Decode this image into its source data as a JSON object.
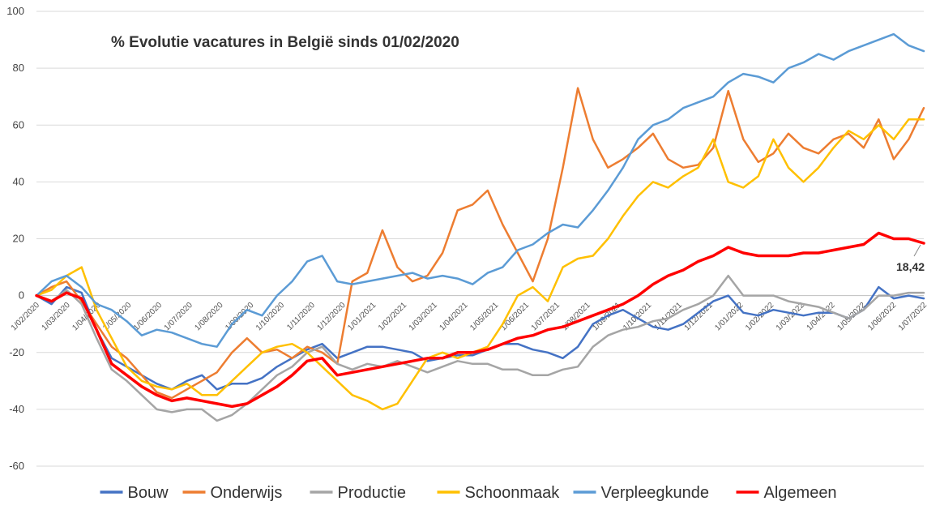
{
  "chart_data": {
    "type": "line",
    "title": "% Evolutie vacatures in België sinds 01/02/2020",
    "xlabel": "",
    "ylabel": "",
    "ylim": [
      -60,
      100
    ],
    "yticks": [
      -60,
      -40,
      -20,
      0,
      20,
      40,
      60,
      80,
      100
    ],
    "grid": true,
    "legend_position": "bottom",
    "x_tick_labels": [
      "1/02/2020",
      "1/03/2020",
      "1/04/2020",
      "1/05/2020",
      "1/06/2020",
      "1/07/2020",
      "1/08/2020",
      "1/09/2020",
      "1/10/2020",
      "1/11/2020",
      "1/12/2020",
      "1/01/2021",
      "1/02/2021",
      "1/03/2021",
      "1/04/2021",
      "1/05/2021",
      "1/06/2021",
      "1/07/2021",
      "1/08/2021",
      "1/09/2021",
      "1/10/2021",
      "1/11/2021",
      "1/12/2021",
      "1/01/2022",
      "1/02/2022",
      "1/03/2022",
      "1/04/2022",
      "1/05/2022",
      "1/06/2022",
      "1/07/2022"
    ],
    "x": [
      "2020-02",
      "2020-02-15",
      "2020-03",
      "2020-03-15",
      "2020-04",
      "2020-04-15",
      "2020-05",
      "2020-05-15",
      "2020-06",
      "2020-06-15",
      "2020-07",
      "2020-07-15",
      "2020-08",
      "2020-08-15",
      "2020-09",
      "2020-09-15",
      "2020-10",
      "2020-10-15",
      "2020-11",
      "2020-11-15",
      "2020-12",
      "2020-12-15",
      "2021-01",
      "2021-01-15",
      "2021-02",
      "2021-02-15",
      "2021-03",
      "2021-03-15",
      "2021-04",
      "2021-04-15",
      "2021-05",
      "2021-05-15",
      "2021-06",
      "2021-06-15",
      "2021-07",
      "2021-07-15",
      "2021-08",
      "2021-08-15",
      "2021-09",
      "2021-09-15",
      "2021-10",
      "2021-10-15",
      "2021-11",
      "2021-11-15",
      "2021-12",
      "2021-12-15",
      "2022-01",
      "2022-01-15",
      "2022-02",
      "2022-02-15",
      "2022-03",
      "2022-03-15",
      "2022-04",
      "2022-04-15",
      "2022-05",
      "2022-05-15",
      "2022-06",
      "2022-06-15",
      "2022-07",
      "2022-07-15"
    ],
    "series": [
      {
        "name": "Bouw",
        "color": "#4472c4",
        "values": [
          0,
          -3,
          3,
          1,
          -12,
          -22,
          -25,
          -28,
          -31,
          -33,
          -30,
          -28,
          -33,
          -31,
          -31,
          -29,
          -25,
          -22,
          -19,
          -17,
          -22,
          -20,
          -18,
          -18,
          -19,
          -20,
          -23,
          -22,
          -21,
          -21,
          -19,
          -17,
          -17,
          -19,
          -20,
          -22,
          -18,
          -10,
          -7,
          -5,
          -8,
          -11,
          -12,
          -10,
          -6,
          -2,
          0,
          -6,
          -7,
          -5,
          -6,
          -7,
          -6,
          -6,
          -8,
          -5,
          3,
          -1,
          0,
          -1
        ]
      },
      {
        "name": "Onderwijs",
        "color": "#ed7d31",
        "values": [
          0,
          3,
          5,
          -2,
          -10,
          -18,
          -22,
          -28,
          -34,
          -36,
          -33,
          -30,
          -27,
          -20,
          -15,
          -20,
          -19,
          -22,
          -18,
          -20,
          -24,
          5,
          8,
          23,
          10,
          5,
          7,
          15,
          30,
          32,
          37,
          25,
          15,
          5,
          20,
          45,
          73,
          55,
          45,
          48,
          52,
          57,
          48,
          45,
          46,
          52,
          72,
          55,
          47,
          50,
          57,
          52,
          50,
          55,
          57,
          52,
          62,
          48,
          55,
          66
        ]
      },
      {
        "name": "Productie",
        "color": "#a5a5a5",
        "values": [
          0,
          -2,
          2,
          -3,
          -15,
          -26,
          -30,
          -35,
          -40,
          -41,
          -40,
          -40,
          -44,
          -42,
          -38,
          -33,
          -28,
          -25,
          -20,
          -18,
          -24,
          -26,
          -24,
          -25,
          -23,
          -25,
          -27,
          -25,
          -23,
          -24,
          -24,
          -26,
          -26,
          -28,
          -28,
          -26,
          -25,
          -18,
          -14,
          -12,
          -11,
          -9,
          -8,
          -5,
          -3,
          0,
          7,
          0,
          0,
          0,
          -2,
          -3,
          -4,
          -6,
          -8,
          -5,
          0,
          0,
          1,
          1
        ]
      },
      {
        "name": "Schoonmaak",
        "color": "#ffc000",
        "values": [
          0,
          2,
          7,
          10,
          -5,
          -15,
          -25,
          -30,
          -32,
          -33,
          -31,
          -35,
          -35,
          -30,
          -25,
          -20,
          -18,
          -17,
          -20,
          -25,
          -30,
          -35,
          -37,
          -40,
          -38,
          -30,
          -22,
          -20,
          -22,
          -20,
          -18,
          -10,
          0,
          3,
          -2,
          10,
          13,
          14,
          20,
          28,
          35,
          40,
          38,
          42,
          45,
          55,
          40,
          38,
          42,
          55,
          45,
          40,
          45,
          52,
          58,
          55,
          60,
          55,
          62,
          62
        ]
      },
      {
        "name": "Verpleegkunde",
        "color": "#5b9bd5",
        "values": [
          0,
          5,
          7,
          3,
          -3,
          -5,
          -9,
          -14,
          -12,
          -13,
          -15,
          -17,
          -18,
          -10,
          -5,
          -7,
          0,
          5,
          12,
          14,
          5,
          4,
          5,
          6,
          7,
          8,
          6,
          7,
          6,
          4,
          8,
          10,
          16,
          18,
          22,
          25,
          24,
          30,
          37,
          45,
          55,
          60,
          62,
          66,
          68,
          70,
          75,
          78,
          77,
          75,
          80,
          82,
          85,
          83,
          86,
          88,
          90,
          92,
          88,
          86
        ]
      },
      {
        "name": "Algemeen",
        "color": "#ff0000",
        "values": [
          0,
          -2,
          1,
          -1,
          -12,
          -24,
          -28,
          -32,
          -35,
          -37,
          -36,
          -37,
          -38,
          -39,
          -38,
          -35,
          -32,
          -28,
          -23,
          -22,
          -28,
          -27,
          -26,
          -25,
          -24,
          -23,
          -22,
          -22,
          -20,
          -20,
          -19,
          -17,
          -15,
          -14,
          -12,
          -11,
          -9,
          -7,
          -5,
          -3,
          0,
          4,
          7,
          9,
          12,
          14,
          17,
          15,
          14,
          14,
          14,
          15,
          15,
          16,
          17,
          18,
          22,
          20,
          20,
          18.42
        ]
      }
    ],
    "annotation": {
      "text": "18,42",
      "series": "Algemeen",
      "index": 59
    }
  }
}
